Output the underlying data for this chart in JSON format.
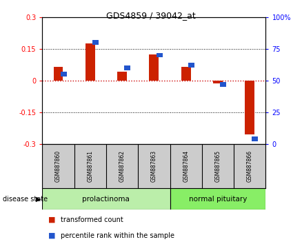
{
  "title": "GDS4859 / 39042_at",
  "samples": [
    "GSM887860",
    "GSM887861",
    "GSM887862",
    "GSM887863",
    "GSM887864",
    "GSM887865",
    "GSM887866"
  ],
  "transformed_count": [
    0.063,
    0.175,
    0.042,
    0.122,
    0.063,
    -0.012,
    -0.255
  ],
  "percentile_rank": [
    55,
    80,
    60,
    70,
    62,
    47,
    4
  ],
  "ylim_left": [
    -0.3,
    0.3
  ],
  "ylim_right": [
    0,
    100
  ],
  "yticks_left": [
    -0.3,
    -0.15,
    0.0,
    0.15,
    0.3
  ],
  "yticks_right": [
    0,
    25,
    50,
    75,
    100
  ],
  "ytick_labels_left": [
    "-0.3",
    "-0.15",
    "0",
    "0.15",
    "0.3"
  ],
  "ytick_labels_right": [
    "0",
    "25",
    "50",
    "75",
    "100%"
  ],
  "bar_color_red": "#cc2200",
  "bar_color_blue": "#2255cc",
  "line_color_red": "#cc0000",
  "disease_groups": [
    {
      "label": "prolactinoma",
      "indices": [
        0,
        1,
        2,
        3
      ],
      "color_light": "#bbeeaa",
      "color_dark": "#66cc55"
    },
    {
      "label": "normal pituitary",
      "indices": [
        4,
        5,
        6
      ],
      "color_light": "#88ee66",
      "color_dark": "#33bb22"
    }
  ],
  "disease_state_label": "disease state",
  "legend_items": [
    {
      "label": "transformed count",
      "color": "#cc2200"
    },
    {
      "label": "percentile rank within the sample",
      "color": "#2255cc"
    }
  ],
  "bar_width": 0.3,
  "plot_bg_color": "#ffffff",
  "sample_bg_color": "#cccccc"
}
